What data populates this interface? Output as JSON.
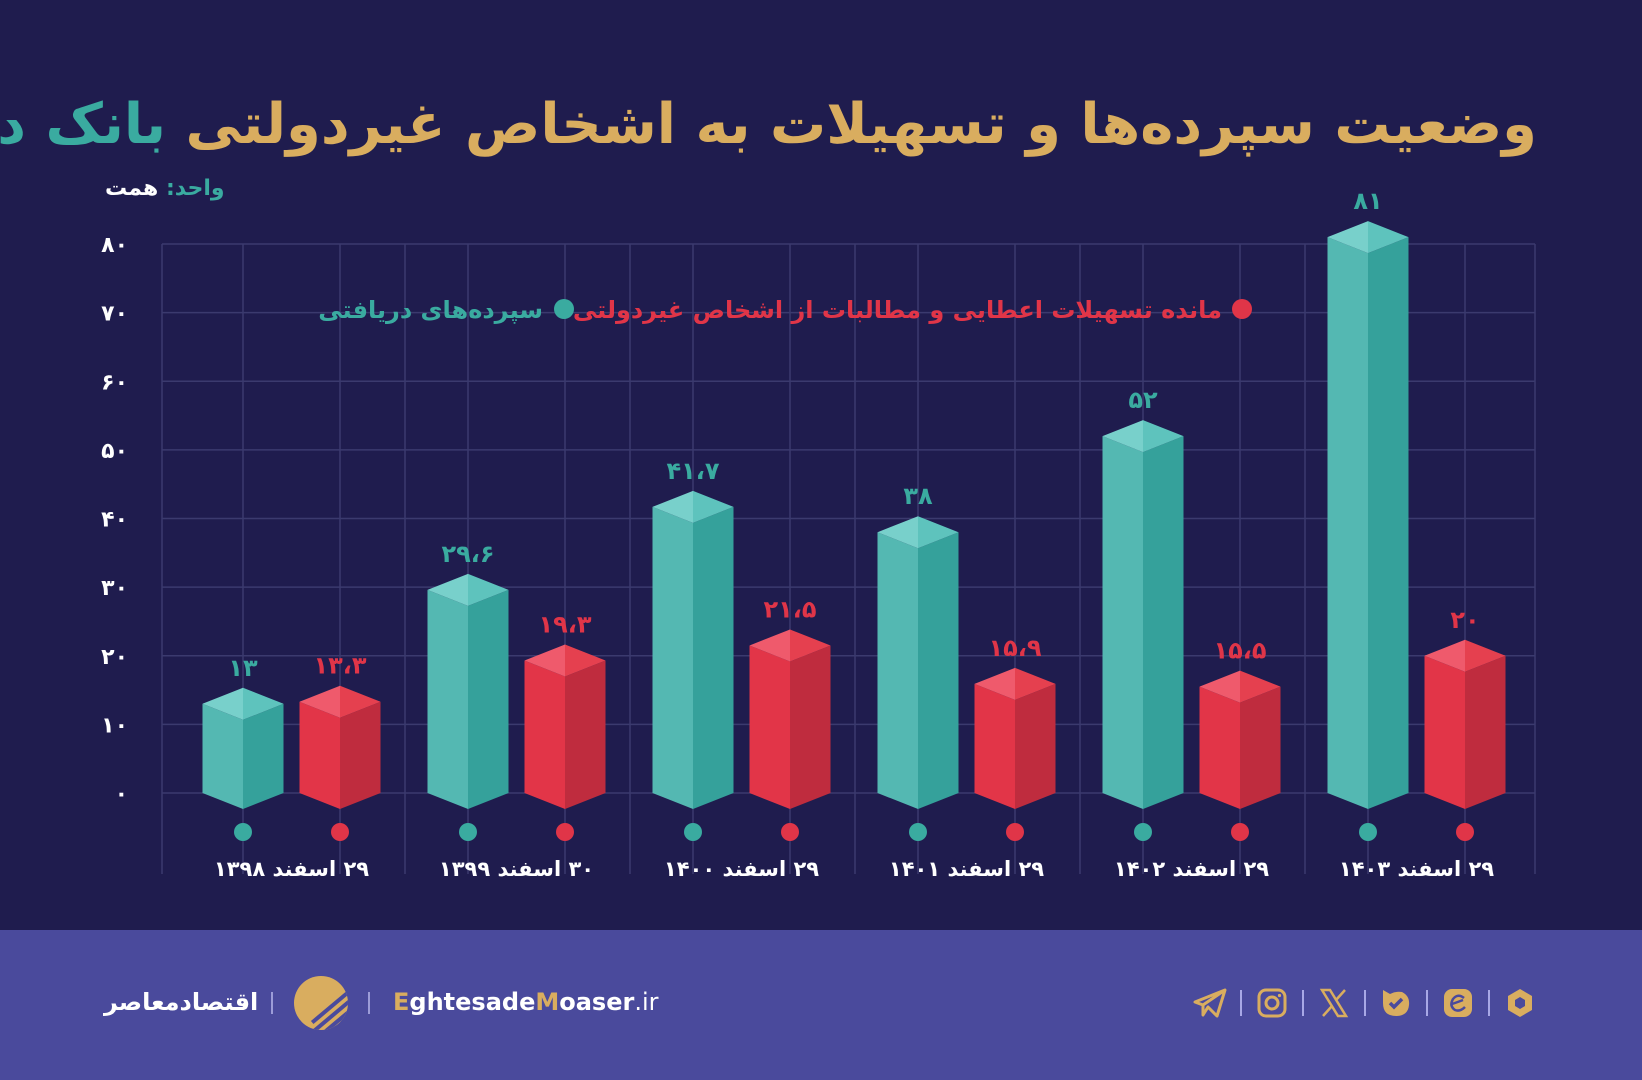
{
  "title": {
    "main": "وضعیت سپرده‌ها و تسهیلات به اشخاص غیردولتی",
    "highlight": "بانک دی"
  },
  "unit": {
    "label": "واحد:",
    "value": "همت"
  },
  "colors": {
    "background": "#1f1c4e",
    "title": "#d9ad5f",
    "teal": "#3aaba0",
    "red": "#e03548",
    "footer": "#4a4a9c"
  },
  "chart_data": {
    "type": "bar",
    "style": "3d-column",
    "categories": [
      "۲۹ اسفند ۱۳۹۸",
      "۳۰ اسفند ۱۳۹۹",
      "۲۹ اسفند ۱۴۰۰",
      "۲۹ اسفند ۱۴۰۱",
      "۲۹ اسفند ۱۴۰۲",
      "۲۹ اسفند ۱۴۰۳"
    ],
    "series": [
      {
        "name": "سپرده‌های دریافتی",
        "color": "#3aaba0",
        "values": [
          13,
          29.6,
          41.7,
          38,
          52,
          81
        ],
        "labels": [
          "۱۳",
          "۲۹،۶",
          "۴۱،۷",
          "۳۸",
          "۵۲",
          "۸۱"
        ]
      },
      {
        "name": "مانده تسهیلات اعطایی و مطالبات از اشخاص غیردولتی",
        "color": "#e03548",
        "values": [
          13.3,
          19.3,
          21.5,
          15.9,
          15.5,
          20
        ],
        "labels": [
          "۱۳،۳",
          "۱۹،۳",
          "۲۱،۵",
          "۱۵،۹",
          "۱۵،۵",
          "۲۰"
        ]
      }
    ],
    "ylim": [
      0,
      80
    ],
    "yticks": [
      0,
      10,
      20,
      30,
      40,
      50,
      60,
      70,
      80
    ],
    "ytick_labels": [
      "۰",
      "۱۰",
      "۲۰",
      "۳۰",
      "۴۰",
      "۵۰",
      "۶۰",
      "۷۰",
      "۸۰"
    ],
    "grid": true,
    "legend": "top"
  },
  "footer": {
    "brand": "اقتصادمعاصر",
    "url_e": "E",
    "url_mid": "ghtesade",
    "url_m": "M",
    "url_rest": "oaser",
    "url_tld": ".ir",
    "social_icons": [
      "rubika-icon",
      "eitaa-icon",
      "bale-icon",
      "x-icon",
      "instagram-icon",
      "telegram-icon"
    ]
  }
}
